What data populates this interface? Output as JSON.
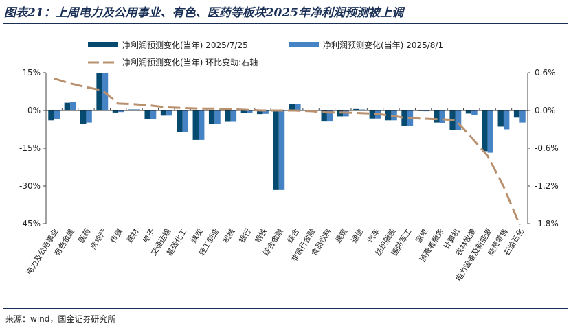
{
  "title": "图表21：上周电力及公用事业、有色、医药等板块2025年净利润预测被上调",
  "source": "来源：wind，国金证券研究所",
  "colors": {
    "series1": "#074a70",
    "series2": "#4583c4",
    "line": "#b9906e",
    "title": "#1a2f55"
  },
  "chart_data": {
    "type": "bar",
    "categories": [
      "电力及公用事业",
      "有色金属",
      "医药",
      "房地产",
      "传媒",
      "建材",
      "电子",
      "交通运输",
      "基础化工",
      "煤炭",
      "轻工制造",
      "机械",
      "银行",
      "钢铁",
      "综合金融",
      "综合",
      "非银行金融",
      "食品饮料",
      "建筑",
      "通信",
      "汽车",
      "纺织服装",
      "国防军工",
      "家电",
      "消费者服务",
      "计算机",
      "农林牧渔",
      "电力设备及新能源",
      "商贸零售",
      "石油石化"
    ],
    "series": [
      {
        "name": "净利润预测变化(当年) 2025/7/25",
        "type": "bar",
        "axis": "left",
        "values": [
          -3.9,
          3.1,
          -5.3,
          16,
          -0.8,
          0.4,
          -3.5,
          -2.0,
          -8.5,
          -11.7,
          -5.3,
          -4.5,
          -1.0,
          -1.4,
          -31.6,
          2.5,
          -0.3,
          -4.4,
          -2.3,
          0.6,
          -3.2,
          -3.9,
          -6.2,
          -0.2,
          -4.8,
          -7.7,
          -1.2,
          -16.2,
          -6.4,
          -2.8
        ]
      },
      {
        "name": "净利润预测变化(当年) 2025/8/1",
        "type": "bar",
        "axis": "left",
        "values": [
          -3.4,
          3.5,
          -4.8,
          16,
          -0.6,
          0.45,
          -3.5,
          -2.0,
          -8.5,
          -11.7,
          -5.2,
          -4.5,
          -0.9,
          -1.3,
          -31.6,
          2.5,
          -0.6,
          -4.4,
          -2.3,
          0.4,
          -3.2,
          -3.9,
          -6.2,
          -0.3,
          -4.9,
          -7.8,
          -1.7,
          -16.8,
          -7.5,
          -4.8
        ]
      },
      {
        "name": "净利润预测变化(当年) 环比变动:右轴",
        "type": "line",
        "axis": "right",
        "style": "dashed",
        "values": [
          0.51,
          0.43,
          0.37,
          0.32,
          0.11,
          0.1,
          0.08,
          0.05,
          0.04,
          0.03,
          0.03,
          0.02,
          0.01,
          0.0,
          0.0,
          0.0,
          -0.01,
          -0.03,
          -0.03,
          -0.04,
          -0.05,
          -0.08,
          -0.12,
          -0.13,
          -0.14,
          -0.15,
          -0.43,
          -0.72,
          -1.21,
          -1.82
        ]
      }
    ],
    "left_axis": {
      "ylim": [
        -45,
        15
      ],
      "ticks": [
        "15%",
        "0%",
        "-15%",
        "-30%",
        "-45%"
      ],
      "tick_values": [
        15,
        0,
        -15,
        -30,
        -45
      ]
    },
    "right_axis": {
      "ylim": [
        -1.8,
        0.6
      ],
      "ticks": [
        "0.6%",
        "0.0%",
        "-0.6%",
        "-1.2%",
        "-1.8%"
      ],
      "tick_values": [
        0.6,
        0,
        -0.6,
        -1.2,
        -1.8
      ]
    },
    "legend": "top",
    "grid": false
  }
}
